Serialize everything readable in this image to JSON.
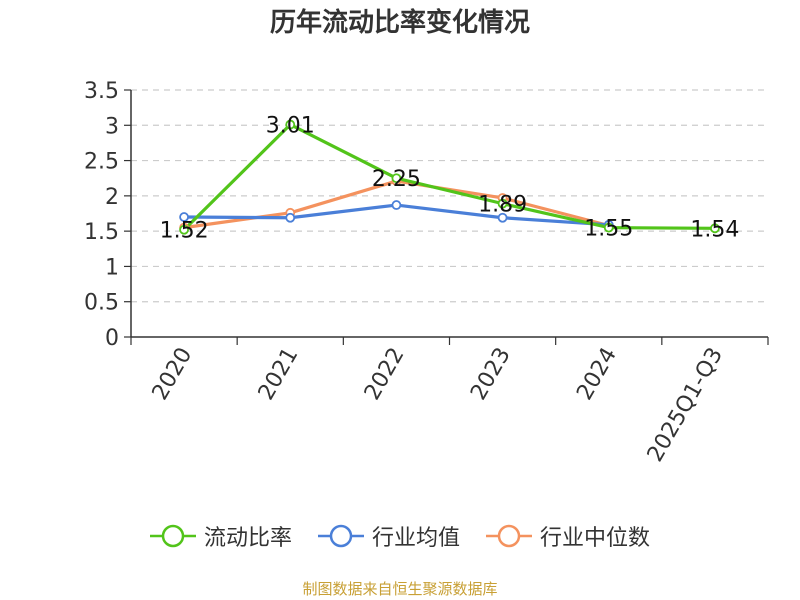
{
  "chart_data": {
    "type": "line",
    "title": "历年流动比率变化情况",
    "categories": [
      "2020",
      "2021",
      "2022",
      "2023",
      "2024",
      "2025Q1-Q3"
    ],
    "ylim": [
      0,
      3.5
    ],
    "yticks": [
      "0",
      "0.5",
      "1",
      "1.5",
      "2",
      "2.5",
      "3",
      "3.5"
    ],
    "grid": true,
    "legend_position": "bottom",
    "series": [
      {
        "name": "流动比率",
        "color": "#52c41a",
        "values": [
          1.52,
          3.01,
          2.25,
          1.89,
          1.55,
          1.54
        ],
        "data_labels": [
          "1.52",
          "3.01",
          "2.25",
          "1.89",
          "1.55",
          "1.54"
        ]
      },
      {
        "name": "行业均值",
        "color": "#4a7fd8",
        "values": [
          1.7,
          1.69,
          1.87,
          1.69,
          1.59,
          null
        ]
      },
      {
        "name": "行业中位数",
        "color": "#f4925e",
        "values": [
          1.55,
          1.76,
          2.21,
          1.97,
          1.58,
          null
        ]
      }
    ],
    "source": "制图数据来自恒生聚源数据库"
  }
}
